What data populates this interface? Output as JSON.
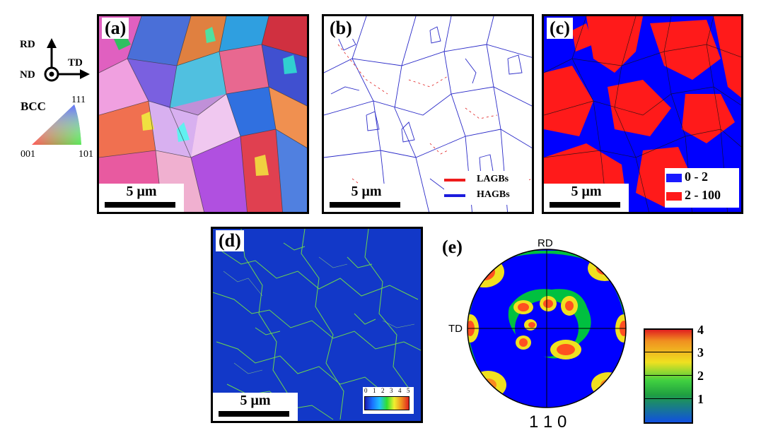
{
  "axes": {
    "rd": "RD",
    "td": "TD",
    "nd": "ND"
  },
  "ipf_key": {
    "crystal": "BCC",
    "corners": [
      "001",
      "101",
      "111"
    ]
  },
  "panels": {
    "a": {
      "label": "(a)",
      "scale": "5 μm"
    },
    "b": {
      "label": "(b)",
      "scale": "5 μm",
      "legend": [
        {
          "label": "LAGBs",
          "color": "#ee1c1c"
        },
        {
          "label": "HAGBs",
          "color": "#1c1cdd"
        }
      ]
    },
    "c": {
      "label": "(c)",
      "scale": "5 μm",
      "legend": [
        {
          "label": "0 - 2",
          "color": "#1a1aff"
        },
        {
          "label": "2 - 100",
          "color": "#ff1a1a"
        }
      ]
    },
    "d": {
      "label": "(d)",
      "scale": "5 μm",
      "colorbar_ticks": [
        "0",
        "1",
        "2",
        "3",
        "4",
        "5"
      ]
    },
    "e": {
      "label": "(e)",
      "pole_rd": "RD",
      "pole_td": "TD",
      "pole_figure": "1 1 0",
      "colorbar_ticks": [
        "4",
        "3",
        "2",
        "1"
      ]
    }
  },
  "colors": {
    "blue": "#0000ff",
    "red": "#ff1a1a",
    "green_lines": "#7cf23a",
    "dark_blue": "#1238c8"
  }
}
